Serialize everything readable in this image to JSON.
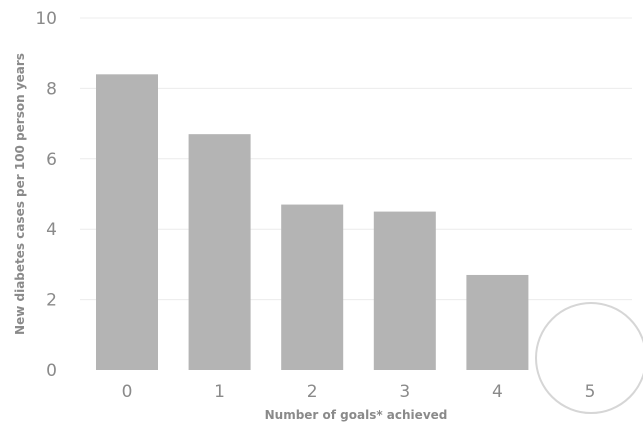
{
  "chart_data": {
    "type": "bar",
    "categories": [
      "0",
      "1",
      "2",
      "3",
      "4",
      "5"
    ],
    "values": [
      8.4,
      6.7,
      4.7,
      4.5,
      2.7,
      0
    ],
    "ylim": [
      0,
      10
    ],
    "yticks": [
      "0",
      "2",
      "4",
      "6",
      "8",
      "10"
    ],
    "xlabel": "Number of goals* achieved",
    "ylabel": "New diabetes cases per 100 person years",
    "bar_color": "#b4b4b4",
    "grid": true,
    "highlighted_category": "5"
  }
}
